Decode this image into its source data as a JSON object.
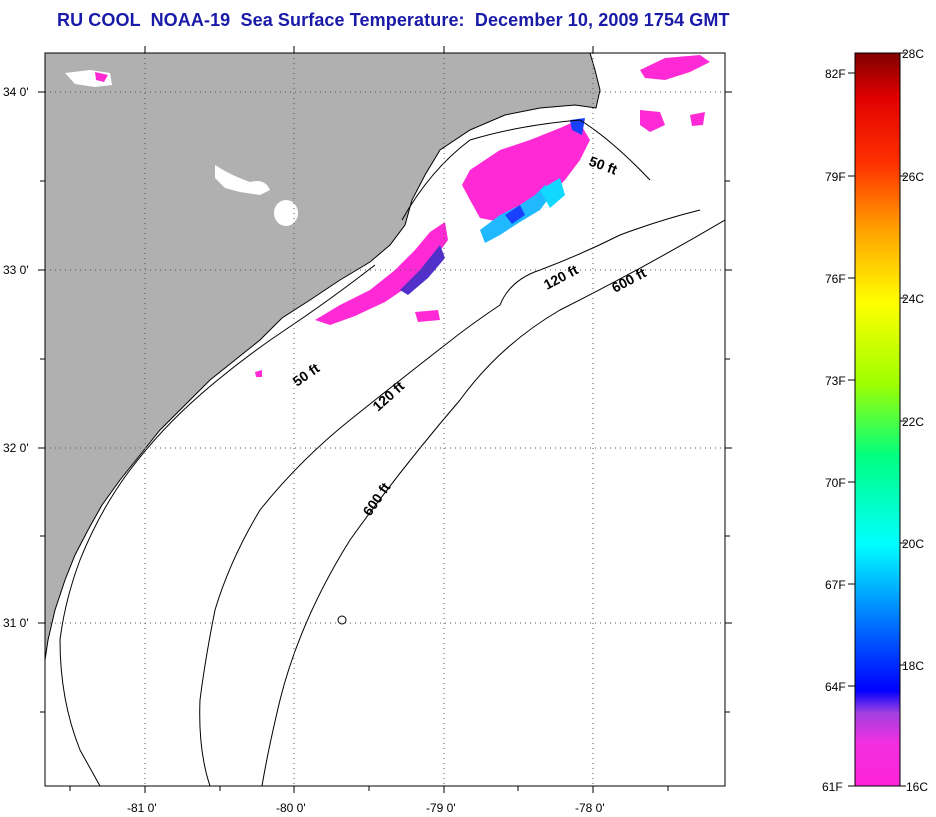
{
  "title": "RU COOL  NOAA-19  Sea Surface Temperature:  December 10, 2009 1754 GMT",
  "map": {
    "lat_ticks": [
      "34 0'",
      "33 0'",
      "32 0'",
      "31 0'"
    ],
    "lon_ticks": [
      "-81 0'",
      "-80 0'",
      "-79 0'",
      "-78 0'"
    ],
    "contour_labels": [
      "50 ft",
      "120 ft",
      "600 ft",
      "50 ft",
      "120 ft",
      "600 ft"
    ],
    "colors": {
      "land": "#b0b0b0",
      "ocean": "#ffffff",
      "sst_pink": "#ff2ad6",
      "sst_cyan": "#10d8ff",
      "sst_blue": "#1a40ff"
    }
  },
  "colorbar": {
    "celsius_labels": [
      "28C",
      "26C",
      "24C",
      "22C",
      "20C",
      "18C",
      "16C"
    ],
    "fahrenheit_labels": [
      "82F",
      "79F",
      "76F",
      "73F",
      "70F",
      "67F",
      "64F",
      "61F"
    ],
    "range_c": [
      16,
      28
    ],
    "colors": [
      "#ff2ad6",
      "#c83cd8",
      "#0000ff",
      "#0080ff",
      "#00ffff",
      "#00ff80",
      "#80ff00",
      "#ffff00",
      "#ffb000",
      "#ff6000",
      "#ff0000",
      "#8b0000"
    ]
  }
}
